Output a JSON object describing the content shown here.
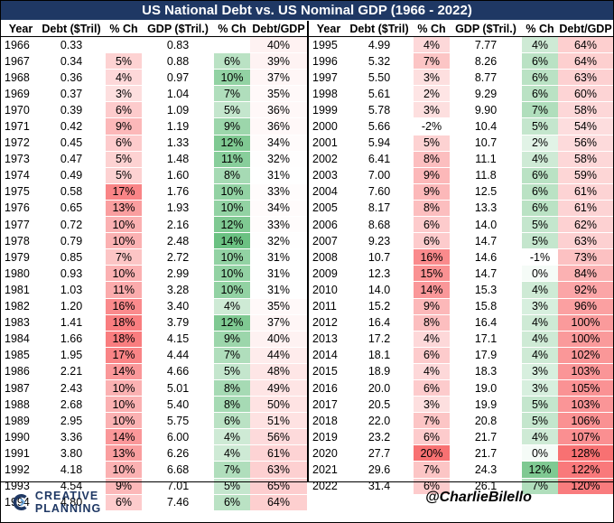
{
  "title": "US National Debt vs. US Nominal GDP (1966 - 2022)",
  "headers": [
    "Year",
    "Debt ($Tril)",
    "% Ch",
    "GDP ($Tril.)",
    "% Ch",
    "Debt/GDP"
  ],
  "rows_left": [
    [
      "1966",
      "0.33",
      "",
      "0.83",
      "",
      "40%"
    ],
    [
      "1967",
      "0.34",
      "5%",
      "0.88",
      "6%",
      "39%"
    ],
    [
      "1968",
      "0.36",
      "4%",
      "0.97",
      "10%",
      "37%"
    ],
    [
      "1969",
      "0.37",
      "3%",
      "1.04",
      "7%",
      "35%"
    ],
    [
      "1970",
      "0.39",
      "6%",
      "1.09",
      "5%",
      "36%"
    ],
    [
      "1971",
      "0.42",
      "9%",
      "1.19",
      "9%",
      "36%"
    ],
    [
      "1972",
      "0.45",
      "6%",
      "1.33",
      "12%",
      "34%"
    ],
    [
      "1973",
      "0.47",
      "5%",
      "1.48",
      "11%",
      "32%"
    ],
    [
      "1974",
      "0.49",
      "5%",
      "1.60",
      "8%",
      "31%"
    ],
    [
      "1975",
      "0.58",
      "17%",
      "1.76",
      "10%",
      "33%"
    ],
    [
      "1976",
      "0.65",
      "13%",
      "1.93",
      "10%",
      "34%"
    ],
    [
      "1977",
      "0.72",
      "10%",
      "2.16",
      "12%",
      "33%"
    ],
    [
      "1978",
      "0.79",
      "10%",
      "2.48",
      "14%",
      "32%"
    ],
    [
      "1979",
      "0.85",
      "7%",
      "2.72",
      "10%",
      "31%"
    ],
    [
      "1980",
      "0.93",
      "10%",
      "2.99",
      "10%",
      "31%"
    ],
    [
      "1981",
      "1.03",
      "11%",
      "3.28",
      "10%",
      "31%"
    ],
    [
      "1982",
      "1.20",
      "16%",
      "3.40",
      "4%",
      "35%"
    ],
    [
      "1983",
      "1.41",
      "18%",
      "3.79",
      "12%",
      "37%"
    ],
    [
      "1984",
      "1.66",
      "18%",
      "4.15",
      "9%",
      "40%"
    ],
    [
      "1985",
      "1.95",
      "17%",
      "4.44",
      "7%",
      "44%"
    ],
    [
      "1986",
      "2.21",
      "14%",
      "4.66",
      "5%",
      "48%"
    ],
    [
      "1987",
      "2.43",
      "10%",
      "5.01",
      "8%",
      "49%"
    ],
    [
      "1988",
      "2.68",
      "10%",
      "5.40",
      "8%",
      "50%"
    ],
    [
      "1989",
      "2.95",
      "10%",
      "5.75",
      "6%",
      "51%"
    ],
    [
      "1990",
      "3.36",
      "14%",
      "6.00",
      "4%",
      "56%"
    ],
    [
      "1991",
      "3.80",
      "13%",
      "6.26",
      "4%",
      "61%"
    ],
    [
      "1992",
      "4.18",
      "10%",
      "6.68",
      "7%",
      "63%"
    ],
    [
      "1993",
      "4.54",
      "9%",
      "7.01",
      "5%",
      "65%"
    ],
    [
      "1994",
      "4.80",
      "6%",
      "7.46",
      "6%",
      "64%"
    ]
  ],
  "rows_right": [
    [
      "1995",
      "4.99",
      "4%",
      "7.77",
      "4%",
      "64%"
    ],
    [
      "1996",
      "5.32",
      "7%",
      "8.26",
      "6%",
      "64%"
    ],
    [
      "1997",
      "5.50",
      "3%",
      "8.77",
      "6%",
      "63%"
    ],
    [
      "1998",
      "5.61",
      "2%",
      "9.29",
      "6%",
      "60%"
    ],
    [
      "1999",
      "5.78",
      "3%",
      "9.90",
      "7%",
      "58%"
    ],
    [
      "2000",
      "5.66",
      "-2%",
      "10.4",
      "5%",
      "54%"
    ],
    [
      "2001",
      "5.94",
      "5%",
      "10.7",
      "2%",
      "56%"
    ],
    [
      "2002",
      "6.41",
      "8%",
      "11.1",
      "4%",
      "58%"
    ],
    [
      "2003",
      "7.00",
      "9%",
      "11.8",
      "6%",
      "59%"
    ],
    [
      "2004",
      "7.60",
      "9%",
      "12.5",
      "6%",
      "61%"
    ],
    [
      "2005",
      "8.17",
      "8%",
      "13.3",
      "6%",
      "61%"
    ],
    [
      "2006",
      "8.68",
      "6%",
      "14.0",
      "5%",
      "62%"
    ],
    [
      "2007",
      "9.23",
      "6%",
      "14.7",
      "5%",
      "63%"
    ],
    [
      "2008",
      "10.7",
      "16%",
      "14.6",
      "-1%",
      "73%"
    ],
    [
      "2009",
      "12.3",
      "15%",
      "14.7",
      "0%",
      "84%"
    ],
    [
      "2010",
      "14.0",
      "14%",
      "15.3",
      "4%",
      "92%"
    ],
    [
      "2011",
      "15.2",
      "9%",
      "15.8",
      "3%",
      "96%"
    ],
    [
      "2012",
      "16.4",
      "8%",
      "16.4",
      "4%",
      "100%"
    ],
    [
      "2013",
      "17.2",
      "4%",
      "17.1",
      "4%",
      "100%"
    ],
    [
      "2014",
      "18.1",
      "6%",
      "17.9",
      "4%",
      "102%"
    ],
    [
      "2015",
      "18.9",
      "4%",
      "18.3",
      "3%",
      "103%"
    ],
    [
      "2016",
      "20.0",
      "6%",
      "19.0",
      "3%",
      "105%"
    ],
    [
      "2017",
      "20.5",
      "3%",
      "19.9",
      "5%",
      "103%"
    ],
    [
      "2018",
      "22.0",
      "7%",
      "20.8",
      "5%",
      "106%"
    ],
    [
      "2019",
      "23.2",
      "6%",
      "21.7",
      "4%",
      "107%"
    ],
    [
      "2020",
      "27.7",
      "20%",
      "21.7",
      "0%",
      "128%"
    ],
    [
      "2021",
      "29.6",
      "7%",
      "24.3",
      "12%",
      "122%"
    ],
    [
      "2022",
      "31.4",
      "6%",
      "26.1",
      "7%",
      "120%"
    ]
  ],
  "footer": {
    "brand": "CREATIVE PLANNING",
    "handle": "@CharlieBilello"
  },
  "colors": {
    "title_bg": "#1f3864",
    "red": "#f8696b",
    "green": "#63be7b",
    "white": "#ffffff",
    "brand": "#1f3864"
  },
  "icons": {
    "logo": "creative-planning-c-logo-icon"
  }
}
